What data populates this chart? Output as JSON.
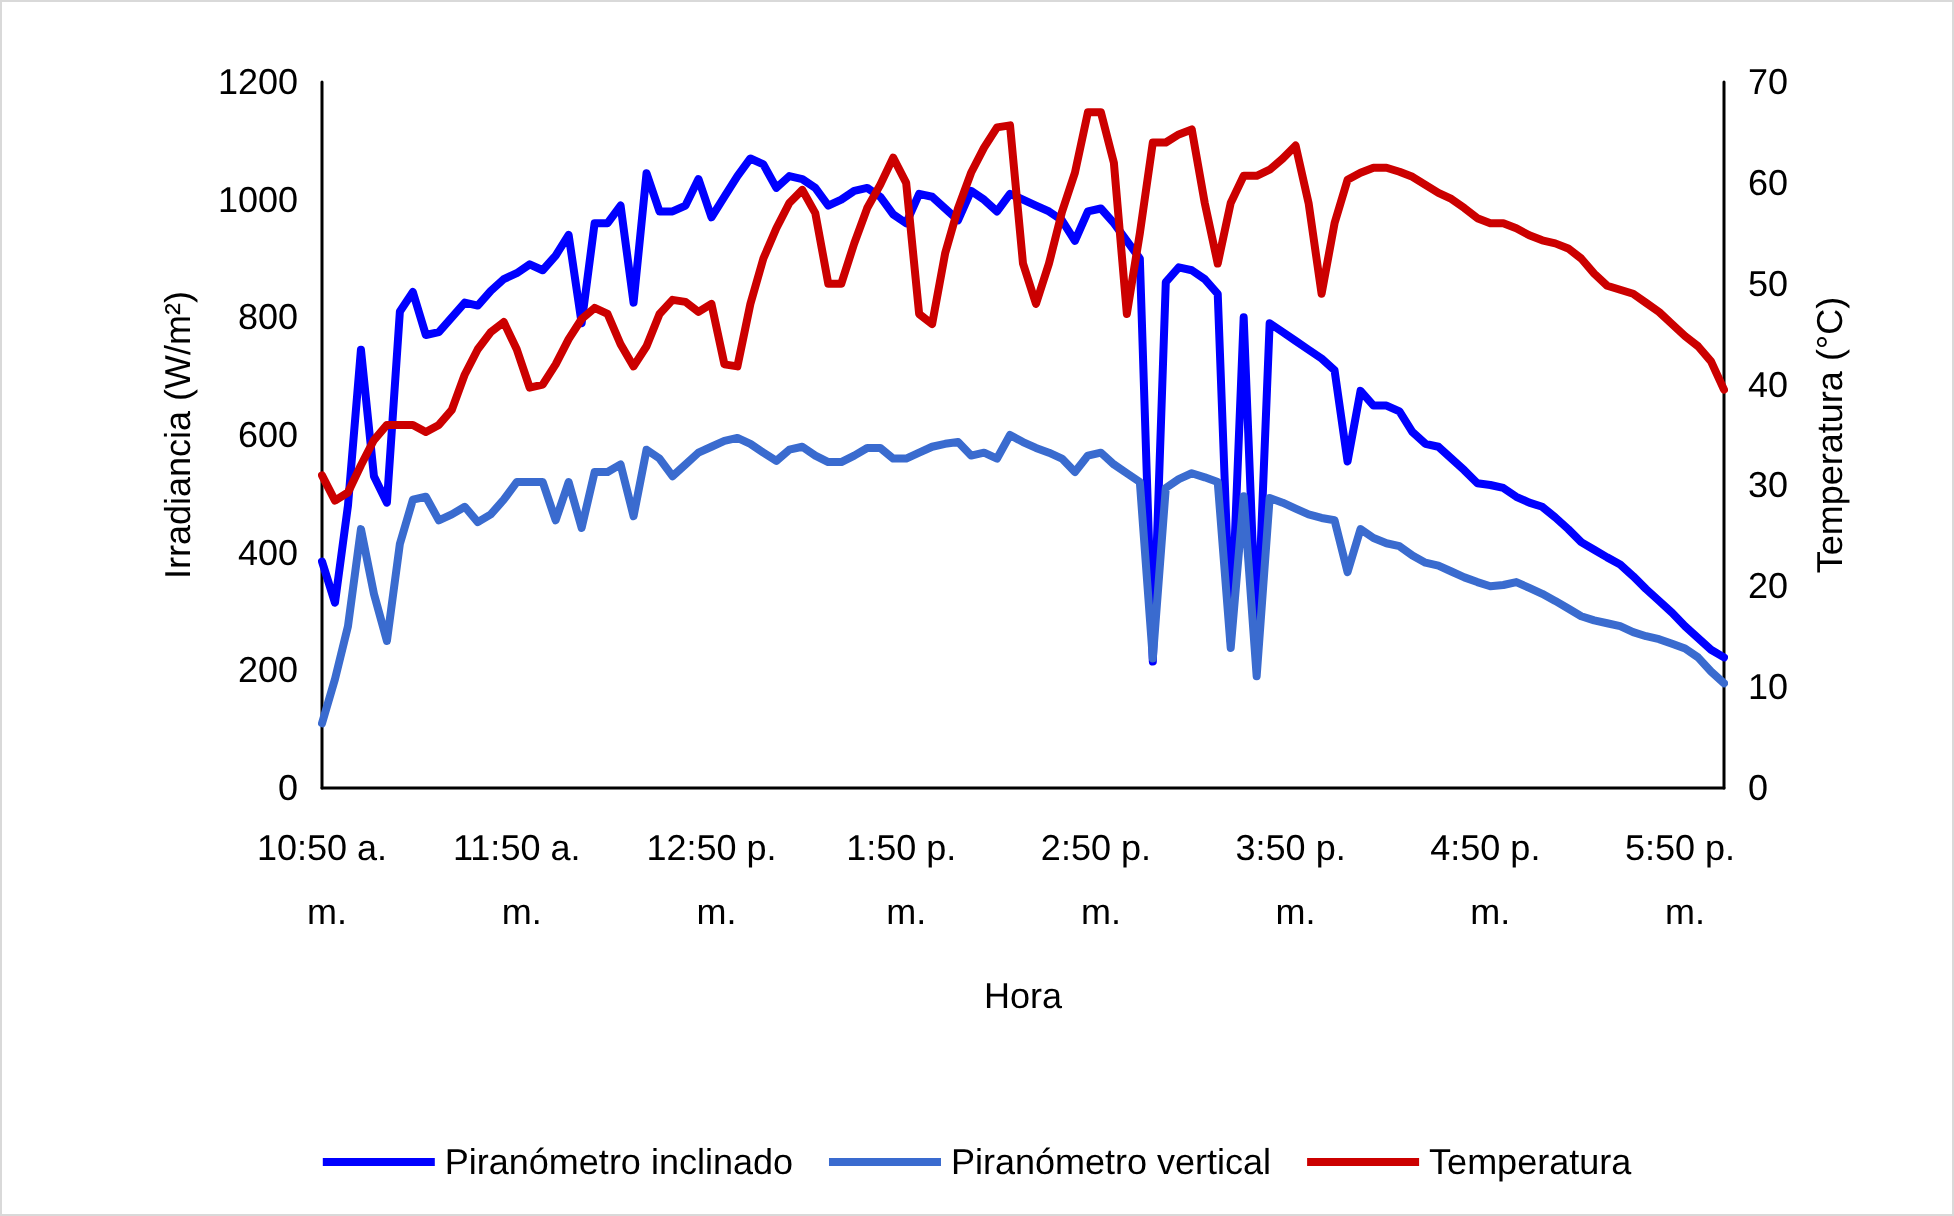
{
  "chart_data": {
    "type": "line",
    "xlabel": "Hora",
    "ylabel": "Irradiancia (W/m²)",
    "y2label": "Temperatura (°C)",
    "categories": [
      "10:50 a. m.",
      null,
      null,
      null,
      null,
      null,
      null,
      null,
      null,
      null,
      null,
      null,
      null,
      null,
      null,
      "11:50 a. m.",
      null,
      null,
      null,
      null,
      null,
      null,
      null,
      null,
      null,
      null,
      null,
      null,
      null,
      null,
      "12:50 p. m.",
      null,
      null,
      null,
      null,
      null,
      null,
      null,
      null,
      null,
      null,
      null,
      null,
      null,
      null,
      "1:50 p. m.",
      null,
      null,
      null,
      null,
      null,
      null,
      null,
      null,
      null,
      null,
      null,
      null,
      null,
      null,
      "2:50 p. m.",
      null,
      null,
      null,
      null,
      null,
      null,
      null,
      null,
      null,
      null,
      null,
      null,
      null,
      null,
      "3:50 p. m.",
      null,
      null,
      null,
      null,
      null,
      null,
      null,
      null,
      null,
      null,
      null,
      null,
      null,
      null,
      "4:50 p. m.",
      null,
      null,
      null,
      null,
      null,
      null,
      null,
      null,
      null,
      null,
      null,
      null,
      null,
      null,
      "5:50 p. m.",
      null,
      null,
      null
    ],
    "ylim": [
      0,
      1200
    ],
    "yticks": [
      0,
      200,
      400,
      600,
      800,
      1000,
      1200
    ],
    "y2lim": [
      0,
      70
    ],
    "y2ticks": [
      0,
      10,
      20,
      30,
      40,
      50,
      60,
      70
    ],
    "legend": "bottom",
    "marker": "none",
    "series": [
      {
        "name": "Piranómetro inclinado",
        "color": "#0000ff",
        "values": [
          385,
          315,
          480,
          745,
          530,
          485,
          810,
          843,
          770,
          775,
          800,
          825,
          820,
          845,
          865,
          875,
          890,
          880,
          905,
          940,
          790,
          960,
          960,
          990,
          825,
          1045,
          980,
          980,
          990,
          1035,
          970,
          1005,
          1040,
          1070,
          1060,
          1020,
          1040,
          1035,
          1020,
          990,
          1000,
          1015,
          1020,
          1005,
          975,
          960,
          1010,
          1005,
          985,
          965,
          1015,
          1000,
          980,
          1010,
          1000,
          990,
          980,
          965,
          930,
          980,
          985,
          960,
          930,
          900,
          215,
          860,
          885,
          880,
          865,
          840,
          250,
          800,
          240,
          790,
          775,
          760,
          745,
          730,
          710,
          555,
          675,
          650,
          650,
          640,
          605,
          585,
          580,
          560,
          540,
          518,
          515,
          510,
          495,
          485,
          478,
          460,
          440,
          418,
          405,
          392,
          380,
          360,
          338,
          318,
          298,
          275,
          255,
          235,
          222
        ]
      },
      {
        "name": "Piranómetro vertical",
        "color": "#3a6bcf",
        "values": [
          110,
          185,
          275,
          440,
          330,
          250,
          415,
          490,
          495,
          455,
          465,
          478,
          452,
          465,
          490,
          520,
          520,
          520,
          455,
          520,
          442,
          537,
          537,
          550,
          462,
          575,
          560,
          530,
          550,
          570,
          580,
          590,
          595,
          585,
          570,
          556,
          575,
          580,
          565,
          554,
          554,
          565,
          578,
          578,
          560,
          560,
          570,
          580,
          585,
          588,
          565,
          570,
          560,
          600,
          588,
          578,
          570,
          560,
          537,
          565,
          570,
          550,
          535,
          520,
          220,
          510,
          525,
          535,
          528,
          520,
          238,
          496,
          190,
          493,
          485,
          475,
          465,
          459,
          455,
          367,
          440,
          425,
          416,
          411,
          395,
          383,
          378,
          368,
          358,
          350,
          343,
          345,
          350,
          340,
          330,
          318,
          305,
          292,
          285,
          280,
          275,
          265,
          258,
          253,
          245,
          237,
          222,
          198,
          178
        ]
      },
      {
        "name": "Temperatura",
        "color": "#cc0000",
        "axis": "y2",
        "values": [
          31,
          28.5,
          29.3,
          32,
          34.5,
          36,
          36,
          36,
          35.3,
          36,
          37.5,
          41,
          43.5,
          45.2,
          46.2,
          43.5,
          39.7,
          40,
          42,
          44.5,
          46.5,
          47.6,
          47,
          44,
          41.8,
          43.8,
          47,
          48.4,
          48.2,
          47.2,
          48,
          42,
          41.8,
          48,
          52.5,
          55.5,
          58,
          59.3,
          57,
          50,
          50,
          54,
          57.5,
          59.8,
          62.5,
          60,
          47,
          46,
          53,
          57.5,
          61,
          63.5,
          65.5,
          65.7,
          52,
          48,
          52,
          57.1,
          61,
          67,
          67,
          62,
          47,
          55,
          64,
          64,
          64.8,
          65.3,
          58,
          52,
          58,
          60.7,
          60.7,
          61.3,
          62.4,
          63.7,
          58,
          49,
          56,
          60.3,
          61,
          61.5,
          61.5,
          61.1,
          60.6,
          59.8,
          59,
          58.4,
          57.5,
          56.5,
          56,
          56,
          55.5,
          54.8,
          54.3,
          54,
          53.5,
          52.5,
          51,
          49.8,
          49.4,
          49,
          48.1,
          47.2,
          46,
          44.8,
          43.8,
          42.3,
          39.5
        ]
      }
    ]
  }
}
